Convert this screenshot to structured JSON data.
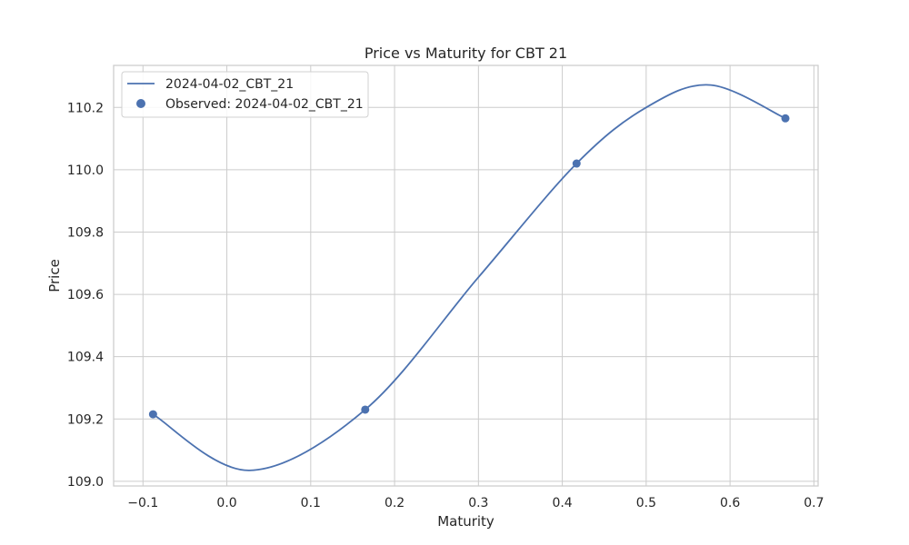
{
  "chart_data": {
    "type": "line",
    "title": "Price vs Maturity for CBT 21",
    "xlabel": "Maturity",
    "ylabel": "Price",
    "xlim": [
      -0.135,
      0.705
    ],
    "ylim": [
      108.985,
      110.335
    ],
    "xticks": [
      -0.1,
      0.0,
      0.1,
      0.2,
      0.3,
      0.4,
      0.5,
      0.6,
      0.7
    ],
    "xtick_labels": [
      "−0.1",
      "0.0",
      "0.1",
      "0.2",
      "0.3",
      "0.4",
      "0.5",
      "0.6",
      "0.7"
    ],
    "yticks": [
      109.0,
      109.2,
      109.4,
      109.6,
      109.8,
      110.0,
      110.2
    ],
    "ytick_labels": [
      "109.0",
      "109.2",
      "109.4",
      "109.6",
      "109.8",
      "110.0",
      "110.2"
    ],
    "grid": true,
    "legend_position": "top-left",
    "series": [
      {
        "name": "2024-04-02_CBT_21",
        "kind": "line",
        "color": "#4c72b0",
        "x": [
          -0.088,
          0.027,
          0.165,
          0.3,
          0.417,
          0.5,
          0.577,
          0.666
        ],
        "y": [
          109.215,
          109.035,
          109.23,
          109.655,
          110.02,
          110.2,
          110.272,
          110.165
        ]
      },
      {
        "name": "Observed: 2024-04-02_CBT_21",
        "kind": "scatter",
        "color": "#4c72b0",
        "x": [
          -0.088,
          0.165,
          0.417,
          0.666
        ],
        "y": [
          109.215,
          109.23,
          110.02,
          110.165
        ]
      }
    ]
  }
}
